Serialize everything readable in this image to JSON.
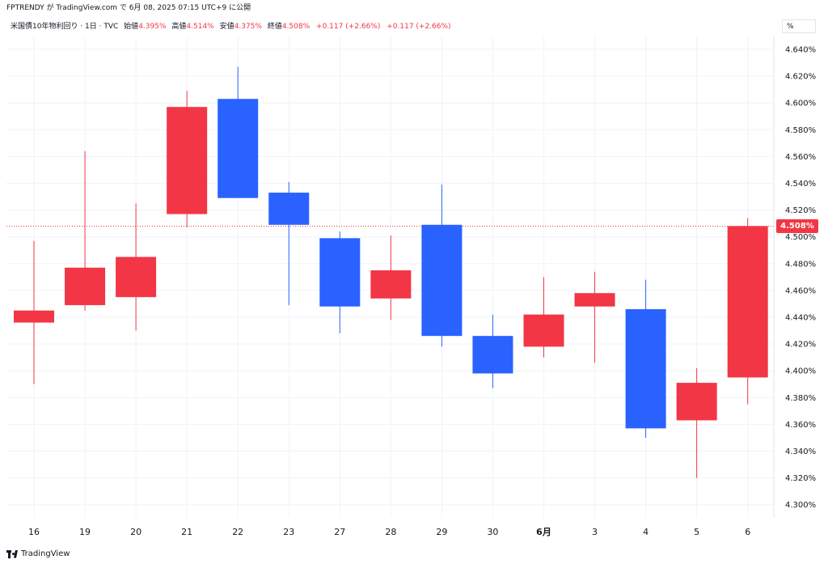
{
  "header": {
    "text": "FPTRENDY が TradingView.com で 6月 08, 2025 07:15 UTC+9 に公開"
  },
  "legend": {
    "symbol": "米国債10年物利回り · 1日 · TVC",
    "open_label": "始値",
    "open": "4.395%",
    "high_label": "高値",
    "high": "4.514%",
    "low_label": "安値",
    "low": "4.375%",
    "close_label": "終値",
    "close": "4.508%",
    "change1": "+0.117 (+2.66%)",
    "change2": "+0.117 (+2.66%)"
  },
  "unit_box": "%",
  "current_price_label": "4.508%",
  "footer": {
    "brand": "TradingView"
  },
  "colors": {
    "up": "#f23645",
    "down": "#2962ff",
    "grid": "#f0f3fa",
    "text": "#131722"
  },
  "chart_data": {
    "type": "candlestick",
    "categories": [
      "16",
      "19",
      "20",
      "21",
      "22",
      "23",
      "27",
      "28",
      "29",
      "30",
      "6月",
      "3",
      "4",
      "5",
      "6"
    ],
    "candles": [
      {
        "x": "16",
        "open": 4.436,
        "high": 4.497,
        "low": 4.39,
        "close": 4.445
      },
      {
        "x": "19",
        "open": 4.449,
        "high": 4.564,
        "low": 4.445,
        "close": 4.477
      },
      {
        "x": "20",
        "open": 4.455,
        "high": 4.525,
        "low": 4.43,
        "close": 4.485
      },
      {
        "x": "21",
        "open": 4.517,
        "high": 4.609,
        "low": 4.507,
        "close": 4.597
      },
      {
        "x": "22",
        "open": 4.603,
        "high": 4.627,
        "low": 4.529,
        "close": 4.529
      },
      {
        "x": "23",
        "open": 4.533,
        "high": 4.541,
        "low": 4.449,
        "close": 4.509
      },
      {
        "x": "27",
        "open": 4.499,
        "high": 4.504,
        "low": 4.428,
        "close": 4.448
      },
      {
        "x": "28",
        "open": 4.454,
        "high": 4.501,
        "low": 4.438,
        "close": 4.475
      },
      {
        "x": "29",
        "open": 4.509,
        "high": 4.539,
        "low": 4.418,
        "close": 4.426
      },
      {
        "x": "30",
        "open": 4.426,
        "high": 4.442,
        "low": 4.387,
        "close": 4.398
      },
      {
        "x": "6月",
        "open": 4.418,
        "high": 4.47,
        "low": 4.41,
        "close": 4.442
      },
      {
        "x": "3",
        "open": 4.448,
        "high": 4.474,
        "low": 4.406,
        "close": 4.458
      },
      {
        "x": "4",
        "open": 4.446,
        "high": 4.468,
        "low": 4.35,
        "close": 4.357
      },
      {
        "x": "5",
        "open": 4.363,
        "high": 4.402,
        "low": 4.32,
        "close": 4.391
      },
      {
        "x": "6",
        "open": 4.395,
        "high": 4.514,
        "low": 4.375,
        "close": 4.508
      }
    ],
    "yticks": [
      "4.300%",
      "4.320%",
      "4.340%",
      "4.360%",
      "4.380%",
      "4.400%",
      "4.420%",
      "4.440%",
      "4.460%",
      "4.480%",
      "4.500%",
      "4.520%",
      "4.540%",
      "4.560%",
      "4.580%",
      "4.600%",
      "4.620%",
      "4.640%"
    ],
    "ylim": [
      4.282,
      4.662
    ],
    "last_price": 4.508,
    "grid": true
  }
}
